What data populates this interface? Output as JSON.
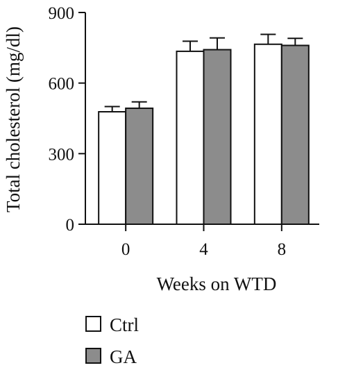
{
  "chart_data": {
    "type": "bar",
    "xlabel": "Weeks on WTD",
    "ylabel": "Total cholesterol (mg/dl)",
    "categories": [
      "0",
      "4",
      "8"
    ],
    "ylim": [
      0,
      900
    ],
    "yticks": [
      "0",
      "300",
      "600",
      "900"
    ],
    "grid": false,
    "legend_position": "bottom-left",
    "series": [
      {
        "name": "Ctrl",
        "color": "#ffffff",
        "values": [
          478,
          735,
          765
        ],
        "errors": [
          22,
          43,
          42
        ]
      },
      {
        "name": "GA",
        "color": "#8c8c8c",
        "values": [
          493,
          742,
          760
        ],
        "errors": [
          27,
          50,
          30
        ]
      }
    ]
  }
}
